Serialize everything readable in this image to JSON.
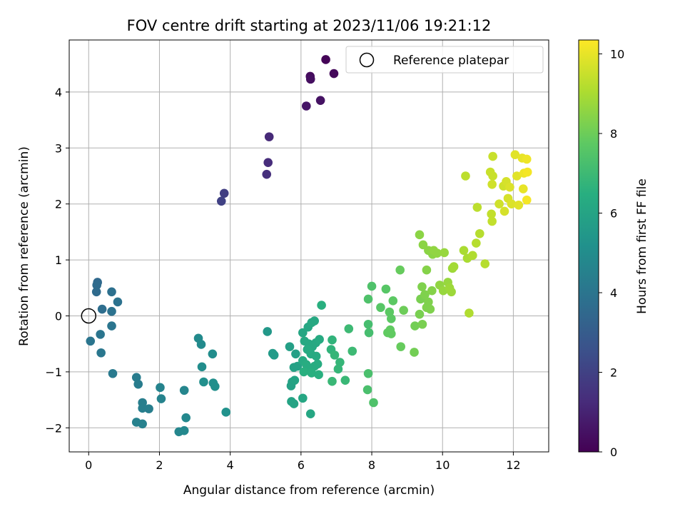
{
  "chart_data": {
    "type": "scatter",
    "title": "FOV centre drift starting at 2023/11/06 19:21:12",
    "xlabel": "Angular distance from reference (arcmin)",
    "ylabel": "Rotation from reference (arcmin)",
    "xlim": [
      -0.55,
      13.0
    ],
    "ylim": [
      -2.43,
      4.93
    ],
    "xticks": [
      0,
      2,
      4,
      6,
      8,
      10,
      12
    ],
    "yticks": [
      -2,
      -1,
      0,
      1,
      2,
      3,
      4
    ],
    "grid": true,
    "legend": {
      "placement": "top-right",
      "entries": [
        "Reference platepar"
      ]
    },
    "reference": {
      "x": 0,
      "y": 0
    },
    "colorbar": {
      "label": "Hours from first FF file",
      "colormap": "viridis",
      "range": [
        0,
        10.35
      ],
      "ticks": [
        0,
        2,
        4,
        6,
        8,
        10
      ]
    },
    "points": [
      {
        "x": 6.7,
        "y": 4.58,
        "c": 0.1
      },
      {
        "x": 6.93,
        "y": 4.33,
        "c": 0.2
      },
      {
        "x": 6.26,
        "y": 4.28,
        "c": 0.3
      },
      {
        "x": 6.27,
        "y": 4.23,
        "c": 0.4
      },
      {
        "x": 6.55,
        "y": 3.85,
        "c": 0.5
      },
      {
        "x": 6.15,
        "y": 3.75,
        "c": 0.6
      },
      {
        "x": 5.1,
        "y": 3.2,
        "c": 1.2
      },
      {
        "x": 5.07,
        "y": 2.74,
        "c": 1.3
      },
      {
        "x": 5.03,
        "y": 2.53,
        "c": 1.4
      },
      {
        "x": 3.83,
        "y": 2.19,
        "c": 1.9
      },
      {
        "x": 3.75,
        "y": 2.05,
        "c": 2.0
      },
      {
        "x": 0.25,
        "y": 0.6,
        "c": 3.5
      },
      {
        "x": 0.23,
        "y": 0.55,
        "c": 3.6
      },
      {
        "x": 0.22,
        "y": 0.43,
        "c": 3.6
      },
      {
        "x": 0.38,
        "y": 0.12,
        "c": 3.7
      },
      {
        "x": 0.65,
        "y": 0.43,
        "c": 3.8
      },
      {
        "x": 0.82,
        "y": 0.25,
        "c": 3.9
      },
      {
        "x": 0.65,
        "y": 0.08,
        "c": 3.9
      },
      {
        "x": 0.65,
        "y": -0.18,
        "c": 4.0
      },
      {
        "x": 0.33,
        "y": -0.33,
        "c": 4.0
      },
      {
        "x": 0.05,
        "y": -0.45,
        "c": 4.0
      },
      {
        "x": 0.35,
        "y": -0.66,
        "c": 4.1
      },
      {
        "x": 0.68,
        "y": -1.03,
        "c": 4.2
      },
      {
        "x": 1.35,
        "y": -1.1,
        "c": 4.3
      },
      {
        "x": 1.4,
        "y": -1.22,
        "c": 4.3
      },
      {
        "x": 1.52,
        "y": -1.55,
        "c": 4.4
      },
      {
        "x": 1.52,
        "y": -1.65,
        "c": 4.4
      },
      {
        "x": 1.7,
        "y": -1.66,
        "c": 4.4
      },
      {
        "x": 1.35,
        "y": -1.9,
        "c": 4.5
      },
      {
        "x": 1.52,
        "y": -1.93,
        "c": 4.5
      },
      {
        "x": 2.02,
        "y": -1.28,
        "c": 4.6
      },
      {
        "x": 2.05,
        "y": -1.48,
        "c": 4.6
      },
      {
        "x": 2.7,
        "y": -1.33,
        "c": 4.7
      },
      {
        "x": 2.55,
        "y": -2.07,
        "c": 4.7
      },
      {
        "x": 2.7,
        "y": -2.05,
        "c": 4.8
      },
      {
        "x": 2.75,
        "y": -1.82,
        "c": 4.8
      },
      {
        "x": 3.1,
        "y": -0.4,
        "c": 4.9
      },
      {
        "x": 3.18,
        "y": -0.51,
        "c": 4.9
      },
      {
        "x": 3.5,
        "y": -0.68,
        "c": 5.0
      },
      {
        "x": 3.2,
        "y": -0.91,
        "c": 5.0
      },
      {
        "x": 3.25,
        "y": -1.18,
        "c": 5.1
      },
      {
        "x": 3.52,
        "y": -1.2,
        "c": 5.1
      },
      {
        "x": 3.57,
        "y": -1.26,
        "c": 5.1
      },
      {
        "x": 3.88,
        "y": -1.72,
        "c": 5.2
      },
      {
        "x": 5.05,
        "y": -0.28,
        "c": 5.5
      },
      {
        "x": 5.2,
        "y": -0.67,
        "c": 5.6
      },
      {
        "x": 5.24,
        "y": -0.7,
        "c": 5.6
      },
      {
        "x": 5.68,
        "y": -0.55,
        "c": 5.8
      },
      {
        "x": 5.85,
        "y": -0.68,
        "c": 5.8
      },
      {
        "x": 5.8,
        "y": -0.92,
        "c": 5.9
      },
      {
        "x": 5.9,
        "y": -0.9,
        "c": 5.9
      },
      {
        "x": 5.75,
        "y": -1.18,
        "c": 5.9
      },
      {
        "x": 5.72,
        "y": -1.25,
        "c": 5.9
      },
      {
        "x": 5.82,
        "y": -1.15,
        "c": 6.0
      },
      {
        "x": 5.73,
        "y": -1.53,
        "c": 6.0
      },
      {
        "x": 5.8,
        "y": -1.57,
        "c": 6.0
      },
      {
        "x": 6.05,
        "y": -1.47,
        "c": 6.1
      },
      {
        "x": 6.27,
        "y": -1.75,
        "c": 6.1
      },
      {
        "x": 6.05,
        "y": -0.3,
        "c": 6.1
      },
      {
        "x": 6.2,
        "y": -0.2,
        "c": 6.1
      },
      {
        "x": 6.3,
        "y": -0.12,
        "c": 6.2
      },
      {
        "x": 6.38,
        "y": -0.09,
        "c": 6.2
      },
      {
        "x": 6.1,
        "y": -0.45,
        "c": 6.2
      },
      {
        "x": 6.22,
        "y": -0.5,
        "c": 6.2
      },
      {
        "x": 6.32,
        "y": -0.55,
        "c": 6.2
      },
      {
        "x": 6.42,
        "y": -0.48,
        "c": 6.2
      },
      {
        "x": 6.52,
        "y": -0.42,
        "c": 6.3
      },
      {
        "x": 6.18,
        "y": -0.6,
        "c": 6.3
      },
      {
        "x": 6.28,
        "y": -0.68,
        "c": 6.3
      },
      {
        "x": 6.43,
        "y": -0.72,
        "c": 6.3
      },
      {
        "x": 6.05,
        "y": -0.8,
        "c": 6.3
      },
      {
        "x": 6.15,
        "y": -0.87,
        "c": 6.4
      },
      {
        "x": 6.25,
        "y": -0.95,
        "c": 6.4
      },
      {
        "x": 6.38,
        "y": -0.9,
        "c": 6.4
      },
      {
        "x": 6.47,
        "y": -0.86,
        "c": 6.4
      },
      {
        "x": 6.08,
        "y": -1.0,
        "c": 6.5
      },
      {
        "x": 6.3,
        "y": -1.02,
        "c": 6.5
      },
      {
        "x": 6.5,
        "y": -1.05,
        "c": 6.5
      },
      {
        "x": 6.58,
        "y": 0.19,
        "c": 6.5
      },
      {
        "x": 6.88,
        "y": -0.43,
        "c": 6.7
      },
      {
        "x": 6.85,
        "y": -0.6,
        "c": 6.7
      },
      {
        "x": 6.95,
        "y": -0.7,
        "c": 6.8
      },
      {
        "x": 7.1,
        "y": -0.83,
        "c": 6.8
      },
      {
        "x": 7.05,
        "y": -0.95,
        "c": 6.8
      },
      {
        "x": 6.88,
        "y": -1.17,
        "c": 6.9
      },
      {
        "x": 7.25,
        "y": -1.15,
        "c": 6.9
      },
      {
        "x": 7.35,
        "y": -0.23,
        "c": 7.0
      },
      {
        "x": 7.45,
        "y": -0.63,
        "c": 7.0
      },
      {
        "x": 7.9,
        "y": -0.15,
        "c": 7.2
      },
      {
        "x": 7.92,
        "y": -0.3,
        "c": 7.2
      },
      {
        "x": 7.9,
        "y": -1.03,
        "c": 7.3
      },
      {
        "x": 7.88,
        "y": -1.32,
        "c": 7.3
      },
      {
        "x": 8.05,
        "y": -1.55,
        "c": 7.4
      },
      {
        "x": 7.9,
        "y": 0.3,
        "c": 7.4
      },
      {
        "x": 8.0,
        "y": 0.53,
        "c": 7.4
      },
      {
        "x": 8.25,
        "y": 0.15,
        "c": 7.6
      },
      {
        "x": 8.4,
        "y": 0.48,
        "c": 7.6
      },
      {
        "x": 8.5,
        "y": 0.07,
        "c": 7.7
      },
      {
        "x": 8.55,
        "y": -0.05,
        "c": 7.7
      },
      {
        "x": 8.6,
        "y": 0.27,
        "c": 7.7
      },
      {
        "x": 8.45,
        "y": -0.3,
        "c": 7.8
      },
      {
        "x": 8.52,
        "y": -0.25,
        "c": 7.8
      },
      {
        "x": 8.55,
        "y": -0.32,
        "c": 7.8
      },
      {
        "x": 8.82,
        "y": -0.55,
        "c": 7.9
      },
      {
        "x": 8.8,
        "y": 0.82,
        "c": 7.9
      },
      {
        "x": 8.9,
        "y": 0.1,
        "c": 8.0
      },
      {
        "x": 9.2,
        "y": -0.65,
        "c": 8.1
      },
      {
        "x": 9.22,
        "y": -0.18,
        "c": 8.1
      },
      {
        "x": 9.35,
        "y": 0.03,
        "c": 8.2
      },
      {
        "x": 9.43,
        "y": -0.15,
        "c": 8.2
      },
      {
        "x": 9.38,
        "y": 0.3,
        "c": 8.2
      },
      {
        "x": 9.42,
        "y": 0.52,
        "c": 8.3
      },
      {
        "x": 9.5,
        "y": 0.38,
        "c": 8.3
      },
      {
        "x": 9.55,
        "y": 0.15,
        "c": 8.3
      },
      {
        "x": 9.6,
        "y": 0.25,
        "c": 8.3
      },
      {
        "x": 9.65,
        "y": 0.12,
        "c": 8.3
      },
      {
        "x": 9.7,
        "y": 0.45,
        "c": 8.4
      },
      {
        "x": 9.55,
        "y": 0.82,
        "c": 8.4
      },
      {
        "x": 9.35,
        "y": 1.45,
        "c": 8.5
      },
      {
        "x": 9.45,
        "y": 1.27,
        "c": 8.5
      },
      {
        "x": 9.6,
        "y": 1.17,
        "c": 8.5
      },
      {
        "x": 9.72,
        "y": 1.1,
        "c": 8.5
      },
      {
        "x": 9.75,
        "y": 1.17,
        "c": 8.6
      },
      {
        "x": 9.85,
        "y": 1.12,
        "c": 8.6
      },
      {
        "x": 9.92,
        "y": 0.55,
        "c": 8.6
      },
      {
        "x": 10.02,
        "y": 0.45,
        "c": 8.7
      },
      {
        "x": 10.05,
        "y": 1.13,
        "c": 8.7
      },
      {
        "x": 10.15,
        "y": 0.6,
        "c": 8.7
      },
      {
        "x": 10.2,
        "y": 0.5,
        "c": 8.8
      },
      {
        "x": 10.25,
        "y": 0.43,
        "c": 8.8
      },
      {
        "x": 10.28,
        "y": 0.85,
        "c": 8.8
      },
      {
        "x": 10.32,
        "y": 0.88,
        "c": 8.9
      },
      {
        "x": 10.6,
        "y": 1.17,
        "c": 9.0
      },
      {
        "x": 10.7,
        "y": 1.03,
        "c": 9.0
      },
      {
        "x": 10.85,
        "y": 1.08,
        "c": 9.1
      },
      {
        "x": 10.75,
        "y": 0.05,
        "c": 9.1
      },
      {
        "x": 10.95,
        "y": 1.3,
        "c": 9.2
      },
      {
        "x": 11.05,
        "y": 1.47,
        "c": 9.2
      },
      {
        "x": 11.2,
        "y": 0.93,
        "c": 9.2
      },
      {
        "x": 10.65,
        "y": 2.5,
        "c": 9.3
      },
      {
        "x": 10.98,
        "y": 1.94,
        "c": 9.3
      },
      {
        "x": 11.38,
        "y": 1.82,
        "c": 9.4
      },
      {
        "x": 11.4,
        "y": 1.69,
        "c": 9.4
      },
      {
        "x": 11.35,
        "y": 2.57,
        "c": 9.5
      },
      {
        "x": 11.42,
        "y": 2.5,
        "c": 9.5
      },
      {
        "x": 11.42,
        "y": 2.85,
        "c": 9.5
      },
      {
        "x": 11.4,
        "y": 2.35,
        "c": 9.6
      },
      {
        "x": 11.6,
        "y": 2.0,
        "c": 9.6
      },
      {
        "x": 11.72,
        "y": 2.32,
        "c": 9.6
      },
      {
        "x": 11.75,
        "y": 1.87,
        "c": 9.7
      },
      {
        "x": 11.8,
        "y": 2.4,
        "c": 9.7
      },
      {
        "x": 11.85,
        "y": 2.1,
        "c": 9.7
      },
      {
        "x": 11.9,
        "y": 2.3,
        "c": 9.8
      },
      {
        "x": 11.95,
        "y": 2.0,
        "c": 9.8
      },
      {
        "x": 12.05,
        "y": 2.88,
        "c": 9.9
      },
      {
        "x": 12.1,
        "y": 2.5,
        "c": 9.9
      },
      {
        "x": 12.15,
        "y": 1.98,
        "c": 9.9
      },
      {
        "x": 12.25,
        "y": 2.82,
        "c": 10.0
      },
      {
        "x": 12.28,
        "y": 2.27,
        "c": 10.0
      },
      {
        "x": 12.3,
        "y": 2.55,
        "c": 10.1
      },
      {
        "x": 12.38,
        "y": 2.8,
        "c": 10.1
      },
      {
        "x": 12.4,
        "y": 2.57,
        "c": 10.2
      },
      {
        "x": 12.38,
        "y": 2.07,
        "c": 10.2
      }
    ]
  }
}
